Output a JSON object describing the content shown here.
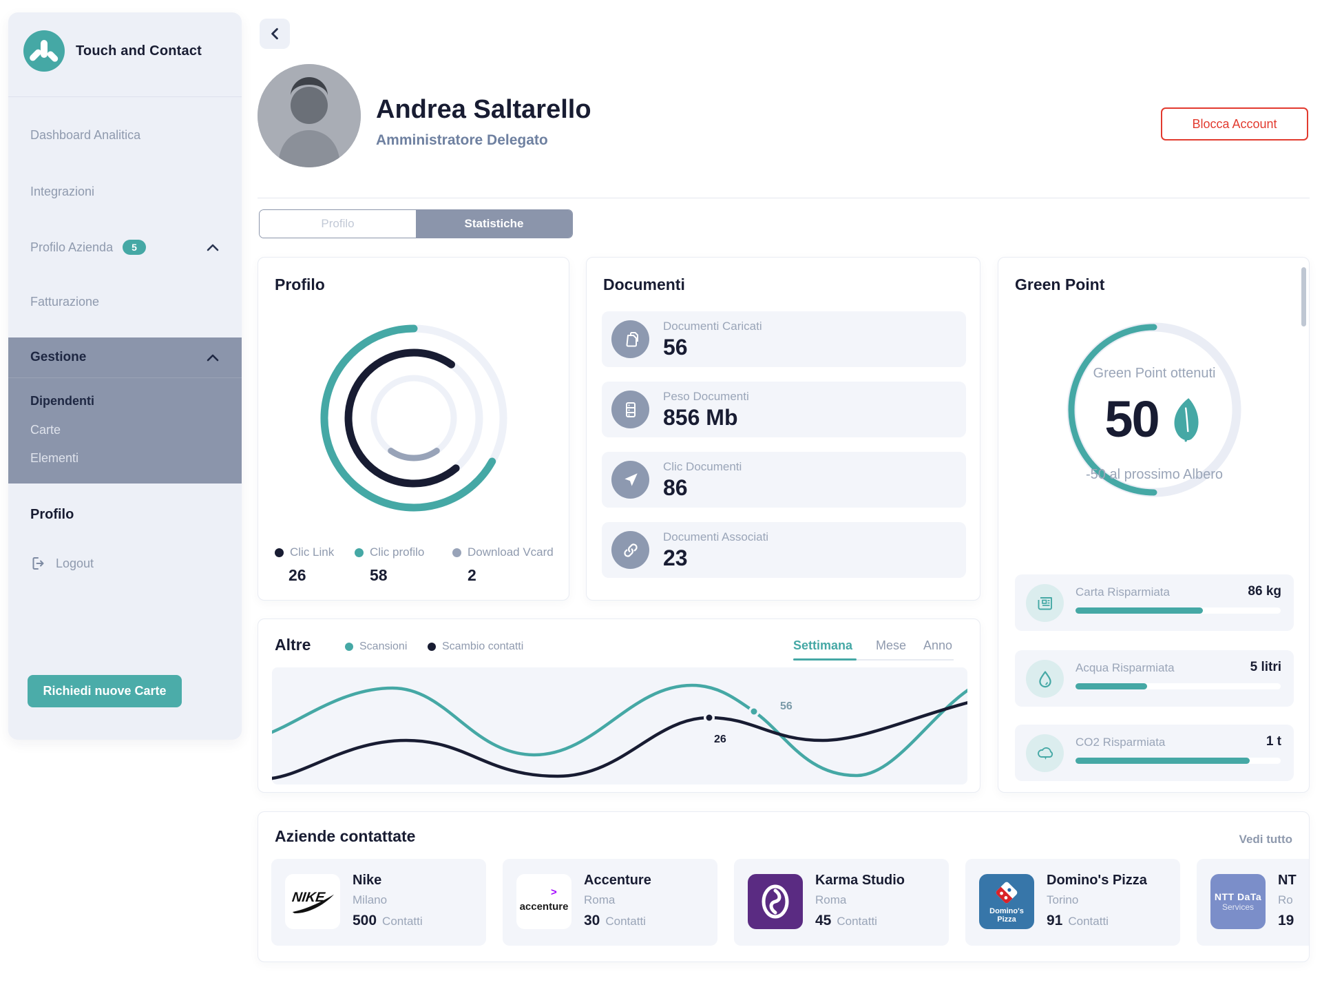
{
  "app": {
    "title": "Touch and Contact"
  },
  "sidebar": {
    "items": [
      {
        "label": "Dashboard Analitica"
      },
      {
        "label": "Integrazioni"
      },
      {
        "label": "Profilo Azienda",
        "badge": "5"
      },
      {
        "label": "Fatturazione"
      }
    ],
    "gestione": {
      "label": "Gestione",
      "children": [
        "Dipendenti",
        "Carte",
        "Elementi"
      ],
      "active_child": "Dipendenti"
    },
    "profile_heading": "Profilo",
    "logout_label": "Logout",
    "request_button": "Richiedi nuove Carte"
  },
  "header": {
    "name": "Andrea Saltarello",
    "role": "Amministratore Delegato",
    "block_button": "Blocca Account"
  },
  "tabs": {
    "profilo": "Profilo",
    "statistiche": "Statistiche",
    "active": "Statistiche"
  },
  "profilo_card": {
    "title": "Profilo",
    "legend": [
      {
        "label": "Clic Link",
        "value": "26",
        "color": "#181C32"
      },
      {
        "label": "Clic profilo",
        "value": "58",
        "color": "#45A8A5"
      },
      {
        "label": "Download Vcard",
        "value": "2",
        "color": "#98A3B8"
      }
    ]
  },
  "documenti_card": {
    "title": "Documenti",
    "rows": [
      {
        "icon": "documents-icon",
        "label": "Documenti Caricati",
        "value": "56"
      },
      {
        "icon": "server-icon",
        "label": "Peso Documenti",
        "value": "856 Mb"
      },
      {
        "icon": "send-icon",
        "label": "Clic Documenti",
        "value": "86"
      },
      {
        "icon": "link-icon",
        "label": "Documenti Associati",
        "value": "23"
      }
    ]
  },
  "green_point_card": {
    "title": "Green Point",
    "gauge_label": "Green Point ottenuti",
    "gauge_value": "50",
    "gauge_sub": "-50 al prossimo Albero",
    "stats": [
      {
        "icon": "newspaper-icon",
        "label": "Carta Risparmiata",
        "value": "86 kg",
        "progress": 62
      },
      {
        "icon": "droplet-icon",
        "label": "Acqua Risparmiata",
        "value": "5 litri",
        "progress": 35
      },
      {
        "icon": "cloud-icon",
        "label": "CO2 Risparmiata",
        "value": "1 t",
        "progress": 85
      }
    ],
    "accent_color": "#45A8A5"
  },
  "altre_card": {
    "title": "Altre",
    "legend": [
      {
        "label": "Scansioni",
        "color": "#45A8A5"
      },
      {
        "label": "Scambio contatti",
        "color": "#181C32"
      }
    ],
    "periods": [
      "Settimana",
      "Mese",
      "Anno"
    ],
    "active_period": "Settimana",
    "point_labels": {
      "scansioni": "56",
      "scambio": "26"
    }
  },
  "chart_data": {
    "type": "line",
    "series": [
      {
        "name": "Scansioni",
        "color": "#45A8A5",
        "labeled_point": 56
      },
      {
        "name": "Scambio contatti",
        "color": "#181C32",
        "labeled_point": 26
      }
    ],
    "x_axis": "hidden",
    "y_axis": "hidden",
    "legend_position": "top-left",
    "period_tabs": [
      "Settimana",
      "Mese",
      "Anno"
    ]
  },
  "aziende": {
    "title": "Aziende contattate",
    "link": "Vedi tutto",
    "contatti_suffix": "Contatti",
    "companies": [
      {
        "name": "Nike",
        "city": "Milano",
        "count": "500",
        "logo_text": "NIKE"
      },
      {
        "name": "Accenture",
        "city": "Roma",
        "count": "30",
        "logo_text": "accenture"
      },
      {
        "name": "Karma Studio",
        "city": "Roma",
        "count": "45"
      },
      {
        "name": "Domino's Pizza",
        "city": "Torino",
        "count": "91",
        "logo_line1": "Domino's",
        "logo_line2": "Pizza"
      },
      {
        "name": "NT",
        "city": "Ro",
        "count": "19",
        "logo_line1": "NTT DaTa",
        "logo_line2": "Services"
      }
    ]
  }
}
